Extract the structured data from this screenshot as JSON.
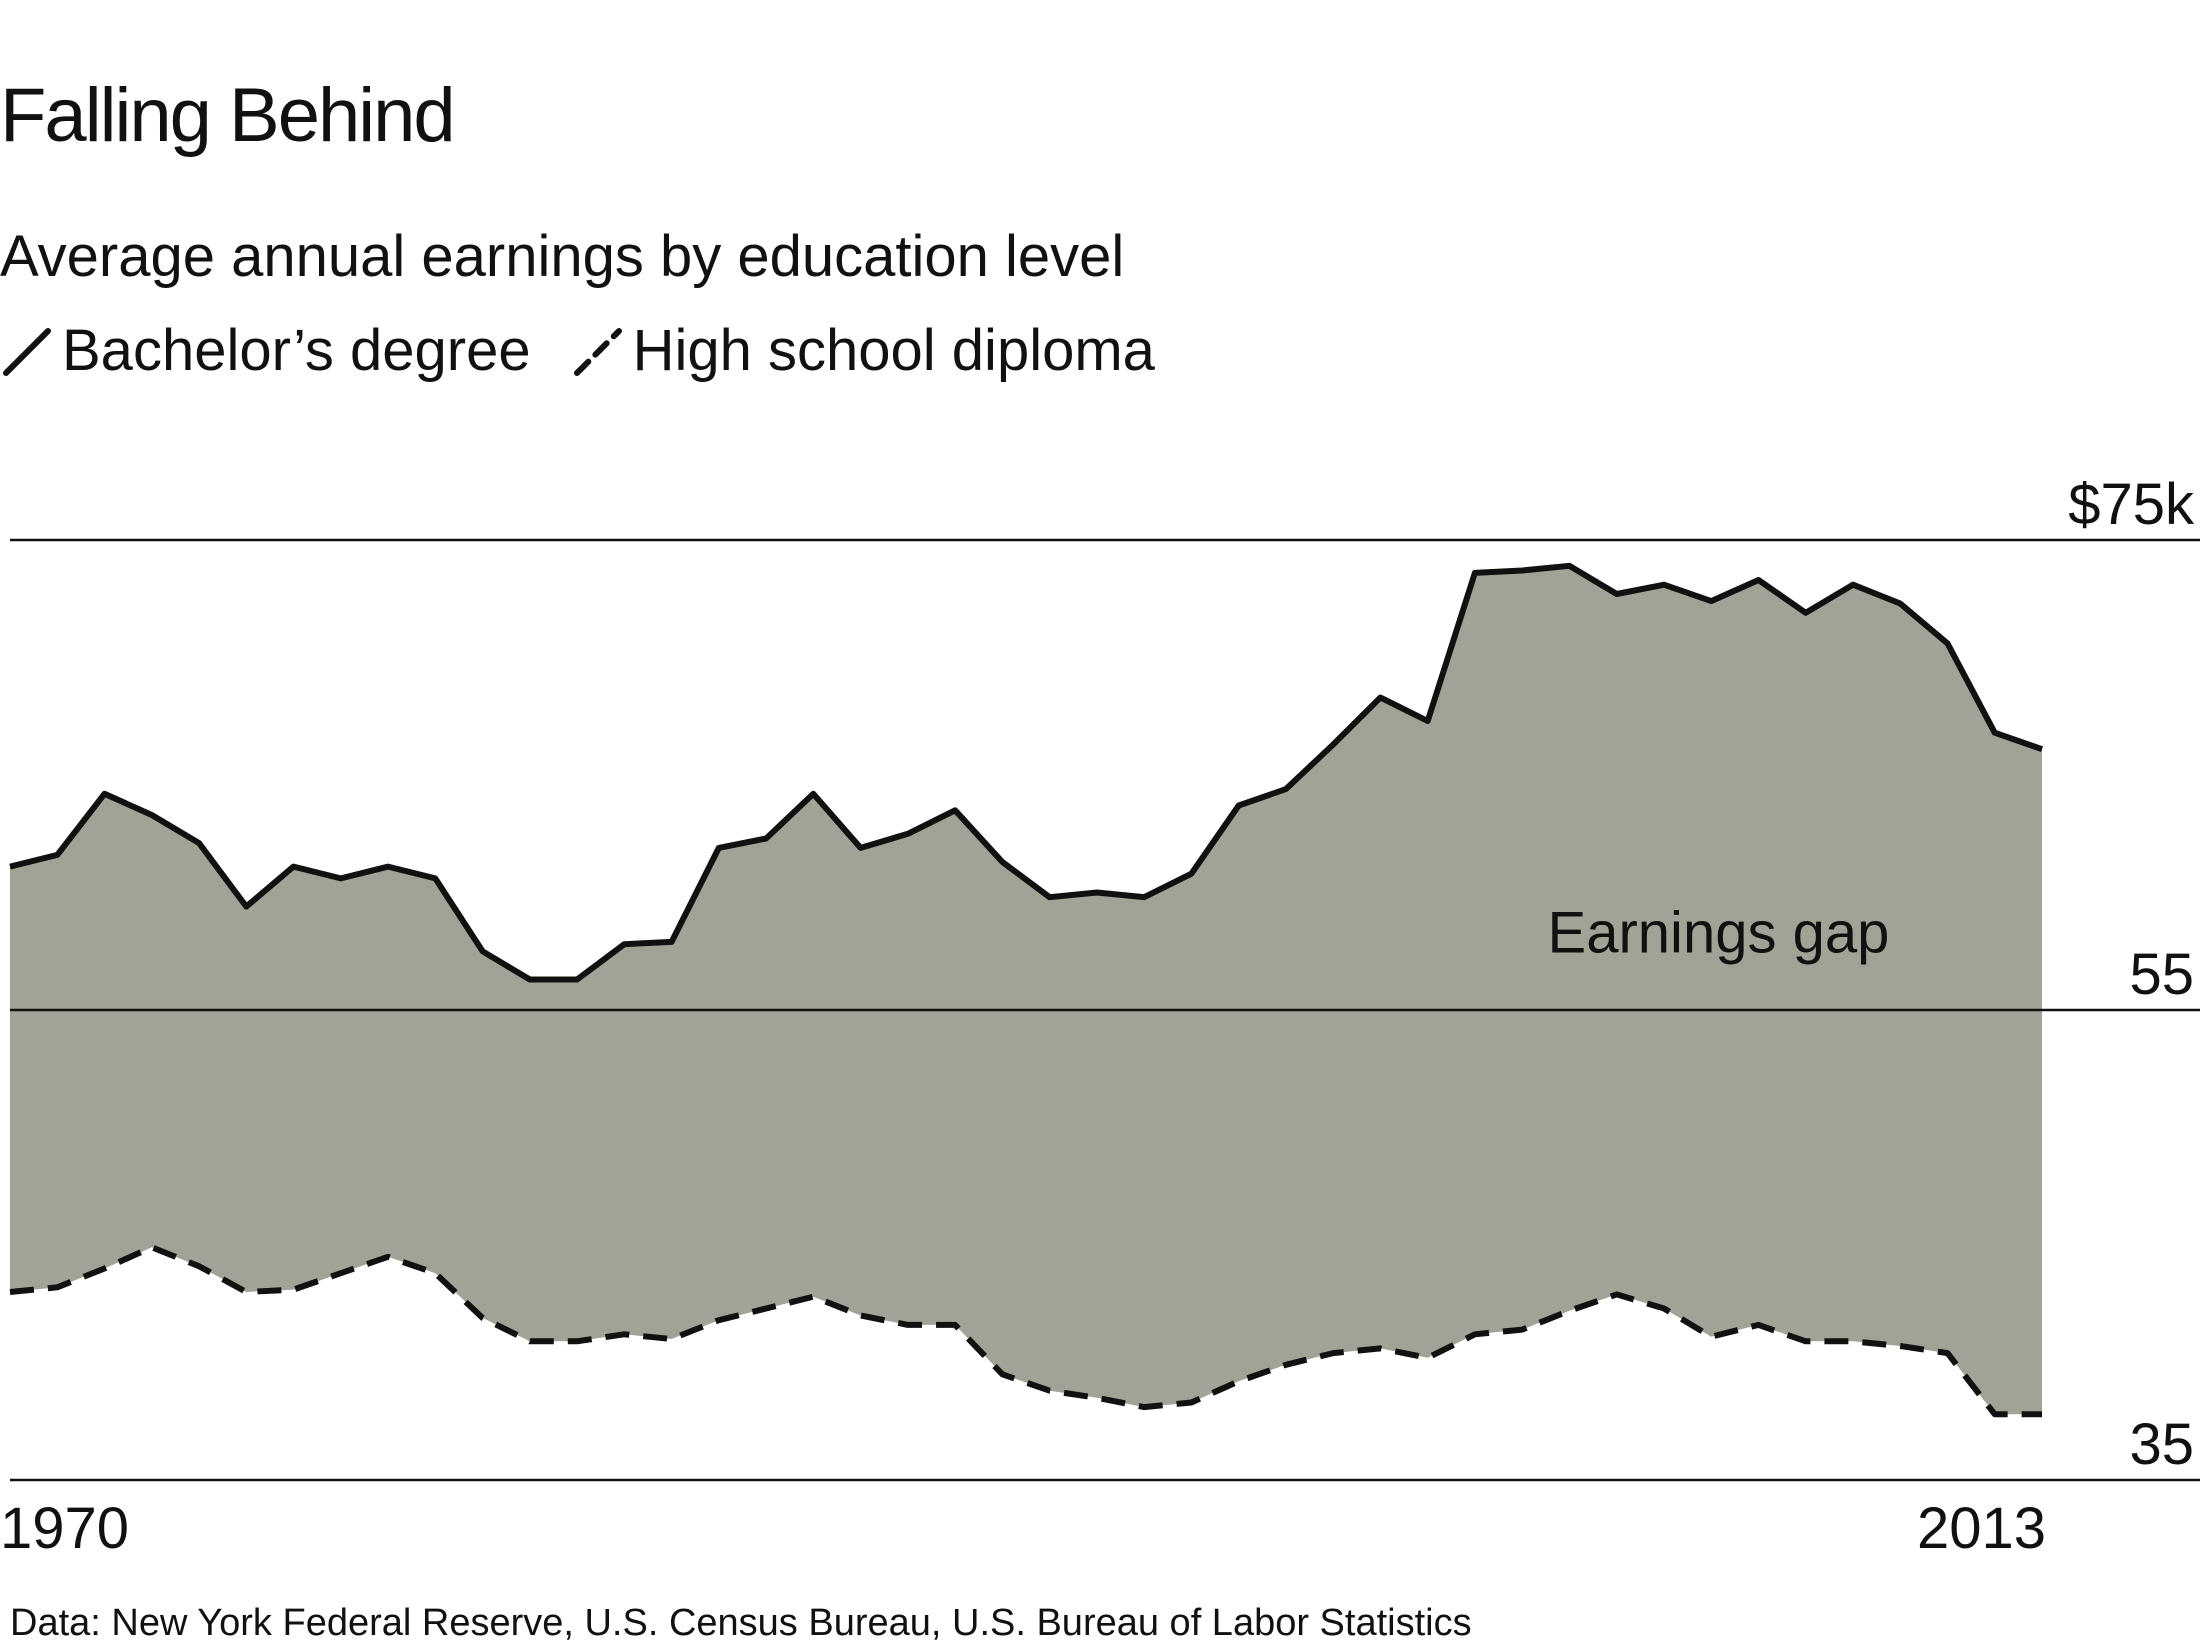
{
  "chart_data": {
    "type": "area",
    "title": "Falling Behind",
    "subtitle": "Average annual earnings by education level",
    "x_start": 1970,
    "x_end": 2013,
    "xticks": [
      {
        "value": 1970,
        "label": "1970"
      },
      {
        "value": 2013,
        "label": "2013"
      }
    ],
    "ylim": [
      35,
      75
    ],
    "yticks": [
      {
        "value": 75,
        "label": "$75k"
      },
      {
        "value": 55,
        "label": "55"
      },
      {
        "value": 35,
        "label": "35"
      }
    ],
    "grid": true,
    "legend_placement": "top-left",
    "fill_color": "#a2a296",
    "line_color": "#111111",
    "annotation": {
      "text": "Earnings gap",
      "x": 2007,
      "y": 58.3
    },
    "source": "Data: New York Federal Reserve, U.S. Census Bureau, U.S. Bureau of Labor Statistics",
    "series": [
      {
        "name": "Bachelor’s degree",
        "style": "solid",
        "values": [
          61.1,
          61.6,
          64.2,
          63.3,
          62.1,
          59.4,
          61.1,
          60.6,
          61.1,
          60.6,
          57.5,
          56.3,
          56.3,
          57.8,
          57.9,
          61.9,
          62.3,
          64.2,
          61.9,
          62.5,
          63.5,
          61.3,
          59.8,
          60.0,
          59.8,
          60.8,
          63.7,
          64.4,
          66.3,
          68.3,
          67.3,
          73.6,
          73.7,
          73.9,
          72.7,
          73.1,
          72.4,
          73.3,
          71.9,
          73.1,
          72.3,
          70.6,
          66.8,
          66.1
        ]
      },
      {
        "name": "High school diploma",
        "style": "dashed",
        "values": [
          43.0,
          43.2,
          44.0,
          44.9,
          44.1,
          43.0,
          43.1,
          43.8,
          44.5,
          43.8,
          41.9,
          40.9,
          40.9,
          41.2,
          41.0,
          41.8,
          42.3,
          42.8,
          42.0,
          41.6,
          41.6,
          39.5,
          38.8,
          38.5,
          38.1,
          38.3,
          39.2,
          39.9,
          40.4,
          40.6,
          40.2,
          41.2,
          41.4,
          42.2,
          42.9,
          42.3,
          41.1,
          41.6,
          40.9,
          40.9,
          40.7,
          40.4,
          37.8,
          37.8
        ]
      }
    ]
  }
}
